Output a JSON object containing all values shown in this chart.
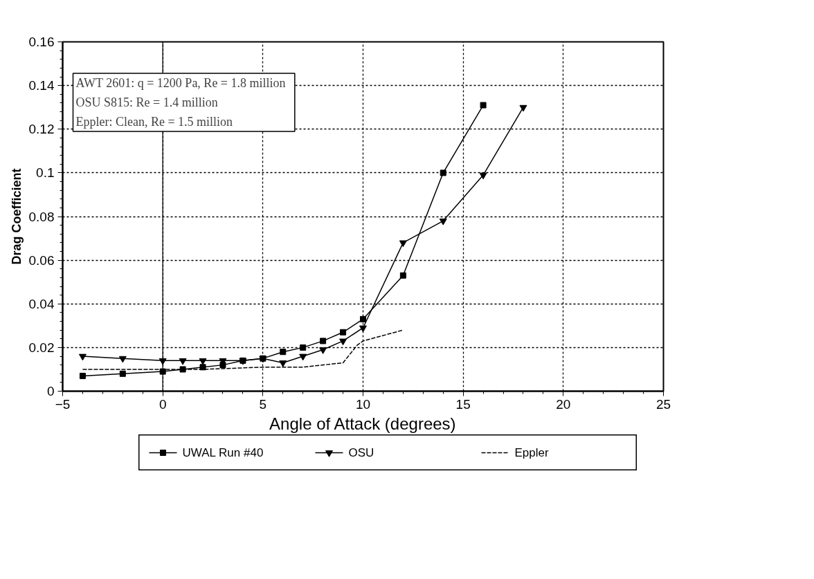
{
  "chart_data": {
    "type": "line",
    "xlabel": "Angle of Attack (degrees)",
    "ylabel": "Drag Coefficient",
    "annotations": [
      "AWT 2601:  q = 1200 Pa,  Re = 1.8 million",
      "OSU S815:  Re = 1.4 million",
      "Eppler:  Clean,  Re = 1.5 million"
    ],
    "xlim": [
      -5,
      25
    ],
    "xticks": [
      -5,
      0,
      5,
      10,
      15,
      20,
      25
    ],
    "ylim": [
      0,
      0.16
    ],
    "yticks": [
      0,
      0.02,
      0.04,
      0.06,
      0.08,
      0.1,
      0.12,
      0.14,
      0.16
    ],
    "grid": true,
    "legend": "bottom",
    "ref_lines": [
      {
        "axis": "x",
        "value": 0,
        "color": "#000000",
        "line_style": "solid"
      }
    ],
    "series": [
      {
        "name": "UWAL Run #40",
        "color": "#000000",
        "marker": "square",
        "line_style": "solid",
        "x": [
          -4,
          -2,
          0,
          1,
          2,
          3,
          4,
          5,
          6,
          7,
          8,
          9,
          10,
          12,
          14,
          16
        ],
        "values": [
          0.007,
          0.008,
          0.009,
          0.01,
          0.011,
          0.012,
          0.014,
          0.015,
          0.018,
          0.02,
          0.023,
          0.027,
          0.033,
          0.053,
          0.1,
          0.131
        ]
      },
      {
        "name": "OSU",
        "color": "#000000",
        "marker": "triangle",
        "line_style": "solid",
        "x": [
          -4,
          -2,
          0,
          1,
          2,
          3,
          4,
          5,
          6,
          7,
          8,
          9,
          10,
          12,
          14,
          16,
          18
        ],
        "values": [
          0.016,
          0.015,
          0.014,
          0.014,
          0.014,
          0.014,
          0.014,
          0.015,
          0.013,
          0.016,
          0.019,
          0.023,
          0.029,
          0.068,
          0.078,
          0.099,
          0.13
        ]
      },
      {
        "name": "Eppler",
        "color": "#000000",
        "marker": "none",
        "line_style": "dashed",
        "x": [
          -4,
          2,
          5,
          7,
          9,
          9.7,
          10,
          12
        ],
        "values": [
          0.01,
          0.01,
          0.011,
          0.011,
          0.013,
          0.021,
          0.023,
          0.028
        ]
      }
    ]
  }
}
